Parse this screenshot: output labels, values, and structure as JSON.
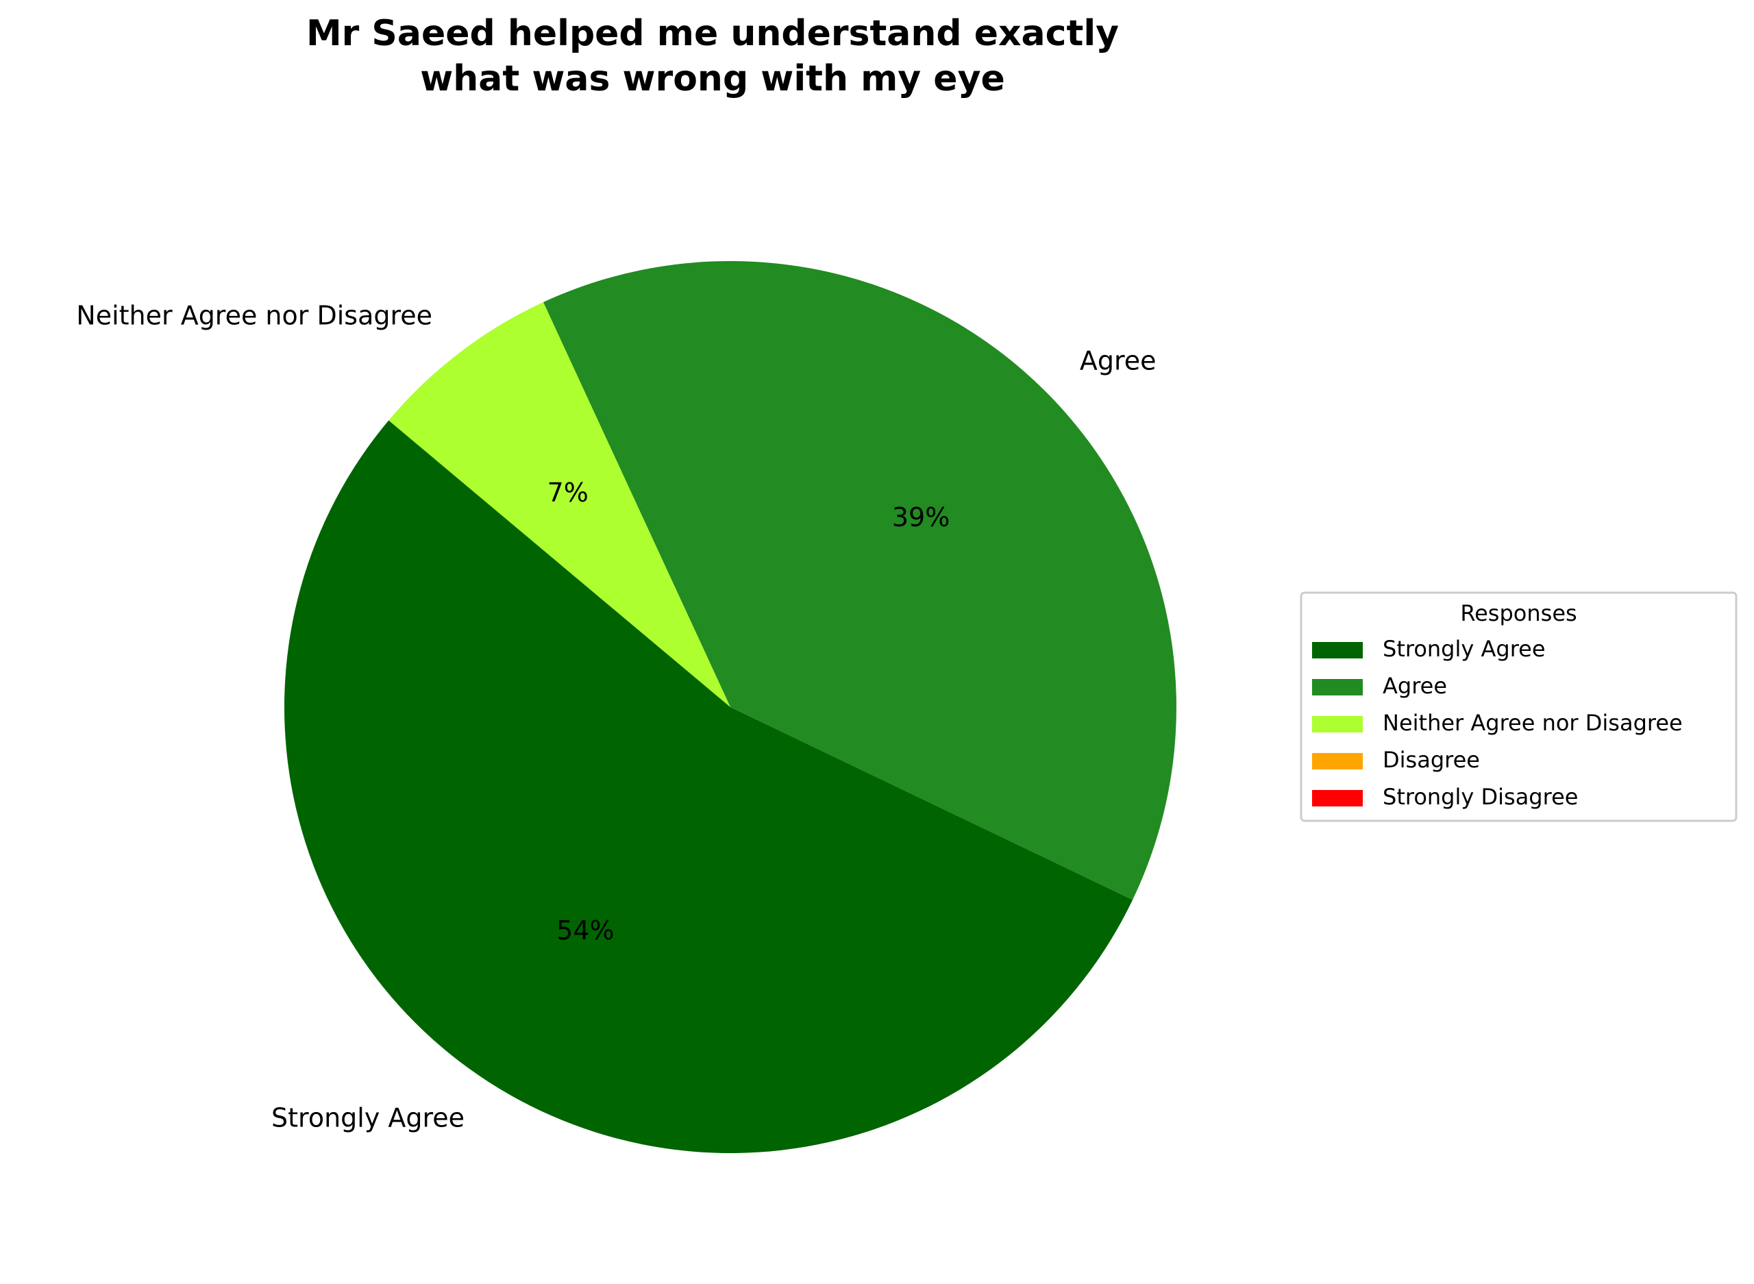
{
  "chart_data": {
    "type": "pie",
    "title": "Mr Saeed helped me understand exactly\nwhat was wrong with my eye",
    "categories": [
      "Strongly Agree",
      "Agree",
      "Neither Agree nor Disagree",
      "Disagree",
      "Strongly Disagree"
    ],
    "values": [
      54,
      39,
      7,
      0,
      0
    ],
    "value_labels": [
      "54%",
      "39%",
      "7%",
      null,
      null
    ],
    "colors": [
      "#006400",
      "#228b22",
      "#adff2f",
      "#ffa500",
      "#ff0000"
    ],
    "start_angle": 140,
    "legend_title": "Responses",
    "legend": "right"
  }
}
